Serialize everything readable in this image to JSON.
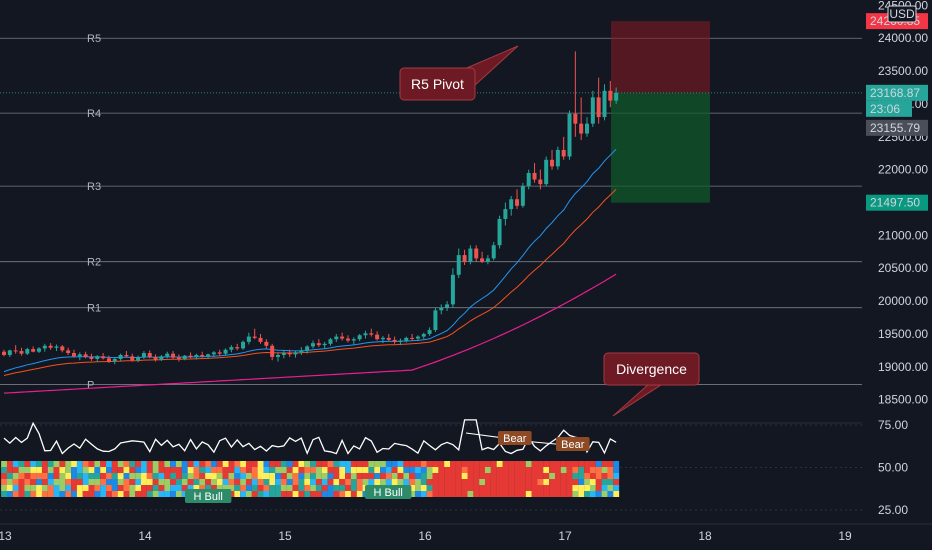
{
  "chart_data": {
    "type": "candlestick",
    "currency": "USD",
    "x_ticks": [
      "13",
      "14",
      "15",
      "16",
      "17",
      "18",
      "19"
    ],
    "price_axis_ticks": [
      18500,
      19000,
      19500,
      20000,
      20500,
      21000,
      21500,
      22000,
      22500,
      23000,
      23500,
      24000,
      24500
    ],
    "price_tick_labels": [
      "18500.00",
      "19000.00",
      "19500.00",
      "20000.00",
      "20500.00",
      "21000.00",
      "21500.00",
      "22000.00",
      "22500.00",
      "23000.00",
      "23500.00",
      "24000.00",
      "24500.00"
    ],
    "price_axis_range": [
      18000,
      24600
    ],
    "pivots": [
      {
        "name": "R5",
        "value": 24000
      },
      {
        "name": "R4",
        "value": 22860
      },
      {
        "name": "R3",
        "value": 21750
      },
      {
        "name": "R2",
        "value": 20600
      },
      {
        "name": "R1",
        "value": 19900
      },
      {
        "name": "P",
        "value": 18730
      }
    ],
    "last_price_label": "23168.87",
    "countdown_label": "23:06",
    "crosshair_price_label": "23155.79",
    "top_red_label": "24260.85",
    "target_price_label": "21497.50",
    "position_box": {
      "entry": 23168.87,
      "stop": 24260,
      "target": 21497.5
    },
    "candles": [
      [
        19230,
        19260,
        19160,
        19180
      ],
      [
        19180,
        19260,
        19150,
        19250
      ],
      [
        19250,
        19330,
        19200,
        19240
      ],
      [
        19240,
        19290,
        19170,
        19200
      ],
      [
        19200,
        19290,
        19180,
        19270
      ],
      [
        19270,
        19310,
        19220,
        19230
      ],
      [
        19230,
        19300,
        19210,
        19280
      ],
      [
        19280,
        19350,
        19230,
        19320
      ],
      [
        19320,
        19360,
        19260,
        19290
      ],
      [
        19290,
        19340,
        19240,
        19310
      ],
      [
        19310,
        19330,
        19220,
        19250
      ],
      [
        19250,
        19290,
        19180,
        19210
      ],
      [
        19210,
        19260,
        19140,
        19160
      ],
      [
        19160,
        19220,
        19100,
        19190
      ],
      [
        19190,
        19230,
        19130,
        19150
      ],
      [
        19150,
        19200,
        19090,
        19120
      ],
      [
        19120,
        19180,
        19080,
        19160
      ],
      [
        19160,
        19210,
        19110,
        19130
      ],
      [
        19130,
        19170,
        19060,
        19080
      ],
      [
        19080,
        19150,
        19040,
        19120
      ],
      [
        19120,
        19200,
        19090,
        19180
      ],
      [
        19180,
        19240,
        19140,
        19160
      ],
      [
        19160,
        19200,
        19080,
        19100
      ],
      [
        19100,
        19170,
        19070,
        19150
      ],
      [
        19150,
        19240,
        19120,
        19210
      ],
      [
        19210,
        19250,
        19130,
        19150
      ],
      [
        19150,
        19190,
        19080,
        19110
      ],
      [
        19110,
        19180,
        19090,
        19160
      ],
      [
        19160,
        19230,
        19130,
        19200
      ],
      [
        19200,
        19240,
        19120,
        19140
      ],
      [
        19140,
        19190,
        19080,
        19120
      ],
      [
        19120,
        19180,
        19100,
        19170
      ],
      [
        19170,
        19220,
        19130,
        19150
      ],
      [
        19150,
        19200,
        19110,
        19180
      ],
      [
        19180,
        19230,
        19140,
        19160
      ],
      [
        19160,
        19200,
        19120,
        19190
      ],
      [
        19190,
        19240,
        19150,
        19220
      ],
      [
        19220,
        19260,
        19170,
        19200
      ],
      [
        19200,
        19280,
        19170,
        19260
      ],
      [
        19260,
        19330,
        19220,
        19300
      ],
      [
        19300,
        19350,
        19250,
        19280
      ],
      [
        19280,
        19400,
        19260,
        19380
      ],
      [
        19380,
        19520,
        19340,
        19460
      ],
      [
        19460,
        19580,
        19420,
        19440
      ],
      [
        19440,
        19500,
        19350,
        19380
      ],
      [
        19380,
        19420,
        19280,
        19320
      ],
      [
        19320,
        19350,
        19100,
        19150
      ],
      [
        19150,
        19220,
        19080,
        19180
      ],
      [
        19180,
        19250,
        19130,
        19210
      ],
      [
        19210,
        19260,
        19150,
        19190
      ],
      [
        19190,
        19240,
        19140,
        19220
      ],
      [
        19220,
        19300,
        19180,
        19250
      ],
      [
        19250,
        19330,
        19200,
        19310
      ],
      [
        19310,
        19400,
        19280,
        19360
      ],
      [
        19360,
        19420,
        19300,
        19330
      ],
      [
        19330,
        19380,
        19270,
        19350
      ],
      [
        19350,
        19440,
        19320,
        19420
      ],
      [
        19420,
        19500,
        19380,
        19460
      ],
      [
        19460,
        19520,
        19400,
        19430
      ],
      [
        19430,
        19480,
        19370,
        19400
      ],
      [
        19400,
        19450,
        19340,
        19420
      ],
      [
        19420,
        19500,
        19390,
        19480
      ],
      [
        19480,
        19550,
        19430,
        19510
      ],
      [
        19510,
        19580,
        19460,
        19490
      ],
      [
        19490,
        19540,
        19400,
        19420
      ],
      [
        19420,
        19470,
        19360,
        19440
      ],
      [
        19440,
        19500,
        19390,
        19410
      ],
      [
        19410,
        19460,
        19350,
        19380
      ],
      [
        19380,
        19430,
        19330,
        19400
      ],
      [
        19400,
        19460,
        19370,
        19440
      ],
      [
        19440,
        19500,
        19400,
        19430
      ],
      [
        19430,
        19480,
        19390,
        19460
      ],
      [
        19460,
        19520,
        19420,
        19500
      ],
      [
        19500,
        19600,
        19470,
        19560
      ],
      [
        19560,
        19900,
        19530,
        19860
      ],
      [
        19860,
        19950,
        19800,
        19900
      ],
      [
        19900,
        20000,
        19850,
        19950
      ],
      [
        19950,
        20500,
        19900,
        20400
      ],
      [
        20400,
        20800,
        20350,
        20700
      ],
      [
        20700,
        20780,
        20550,
        20600
      ],
      [
        20600,
        20850,
        20560,
        20800
      ],
      [
        20800,
        20850,
        20600,
        20650
      ],
      [
        20650,
        20750,
        20580,
        20600
      ],
      [
        20600,
        20700,
        20560,
        20650
      ],
      [
        20650,
        20900,
        20620,
        20850
      ],
      [
        20850,
        21300,
        20800,
        21250
      ],
      [
        21250,
        21500,
        21150,
        21400
      ],
      [
        21400,
        21600,
        21300,
        21550
      ],
      [
        21550,
        21700,
        21400,
        21450
      ],
      [
        21450,
        21800,
        21420,
        21750
      ],
      [
        21750,
        22000,
        21700,
        21950
      ],
      [
        21950,
        22100,
        21800,
        21850
      ],
      [
        21850,
        22000,
        21700,
        21780
      ],
      [
        21780,
        22200,
        21750,
        22150
      ],
      [
        22150,
        22300,
        22000,
        22050
      ],
      [
        22050,
        22350,
        22000,
        22300
      ],
      [
        22300,
        22500,
        22150,
        22200
      ],
      [
        22200,
        22900,
        22150,
        22850
      ],
      [
        22850,
        23800,
        22500,
        22700
      ],
      [
        22700,
        23100,
        22450,
        22550
      ],
      [
        22550,
        22800,
        22500,
        22700
      ],
      [
        22700,
        23200,
        22650,
        23100
      ],
      [
        23100,
        23400,
        22700,
        22800
      ],
      [
        22800,
        23300,
        22750,
        23200
      ],
      [
        23200,
        23350,
        22950,
        23050
      ],
      [
        23050,
        23250,
        23000,
        23169
      ]
    ],
    "ema_fast_label": "",
    "ema_mid_label": "",
    "ema_slow_label": ""
  },
  "pivot_labels": [
    "R5",
    "R4",
    "R3",
    "R2",
    "R1",
    "P"
  ],
  "callouts": {
    "r5": "R5 Pivot",
    "divergence": "Divergence"
  },
  "oscillator": {
    "ticks": [
      "75.00",
      "50.00",
      "25.00"
    ],
    "tags": [
      "Bear",
      "Bear",
      "H Bull",
      "H Bull"
    ]
  },
  "colors": {
    "bull": "#26a69a",
    "bear": "#ef5350",
    "ema_fast": "#2196f3",
    "ema_slow": "#f4511e",
    "ema_long": "#e91e90",
    "callout_fill": "#6e1a24"
  }
}
